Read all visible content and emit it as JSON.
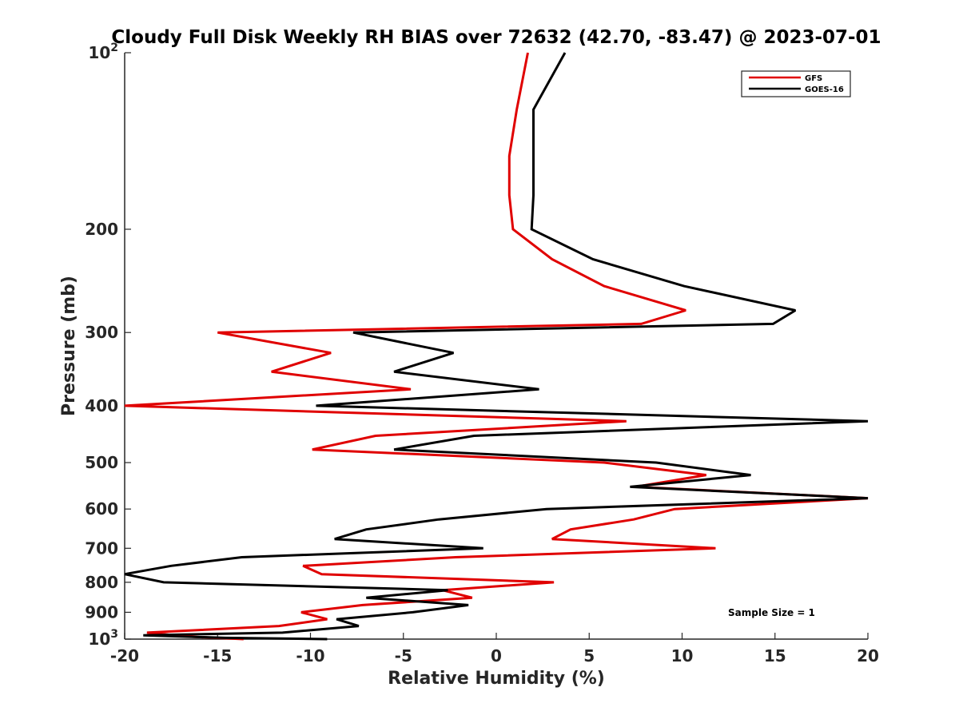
{
  "chart_data": {
    "type": "line",
    "title": "Cloudy Full Disk Weekly RH BIAS over 72632 (42.70, -83.47) @ 2023-07-01",
    "xlabel": "Relative Humidity (%)",
    "ylabel": "Pressure (mb)",
    "xlim": [
      -20,
      20
    ],
    "ylim": [
      100,
      1000
    ],
    "y_scale": "log",
    "y_reversed": true,
    "grid": false,
    "legend_position": "top-right",
    "x_ticks": [
      -20,
      -15,
      -10,
      -5,
      0,
      5,
      10,
      15,
      20
    ],
    "x_tick_labels": [
      "-20",
      "-15",
      "-10",
      "-5",
      "0",
      "5",
      "10",
      "15",
      "20"
    ],
    "y_ticks": [
      {
        "value": 100,
        "base": "10",
        "exp": "2"
      },
      {
        "value": 200,
        "label": "200"
      },
      {
        "value": 300,
        "label": "300"
      },
      {
        "value": 400,
        "label": "400"
      },
      {
        "value": 500,
        "label": "500"
      },
      {
        "value": 600,
        "label": "600"
      },
      {
        "value": 700,
        "label": "700"
      },
      {
        "value": 800,
        "label": "800"
      },
      {
        "value": 900,
        "label": "900"
      },
      {
        "value": 1000,
        "base": "10",
        "exp": "3"
      }
    ],
    "annotation": "Sample Size = 1",
    "series": [
      {
        "name": "GFS",
        "color": "#e00000",
        "points": [
          [
            1.7,
            100
          ],
          [
            1.1,
            125
          ],
          [
            0.7,
            150
          ],
          [
            0.7,
            175
          ],
          [
            0.9,
            200
          ],
          [
            3.0,
            225
          ],
          [
            5.8,
            250
          ],
          [
            10.2,
            275
          ],
          [
            7.8,
            290
          ],
          [
            -15.0,
            300
          ],
          [
            -8.9,
            325
          ],
          [
            -12.1,
            350
          ],
          [
            -4.6,
            375
          ],
          [
            -20.0,
            400
          ],
          [
            7.0,
            425
          ],
          [
            -6.5,
            450
          ],
          [
            -9.9,
            475
          ],
          [
            5.8,
            500
          ],
          [
            11.3,
            525
          ],
          [
            7.5,
            550
          ],
          [
            20.0,
            575
          ],
          [
            9.6,
            600
          ],
          [
            7.4,
            625
          ],
          [
            4.0,
            650
          ],
          [
            3.0,
            675
          ],
          [
            11.8,
            700
          ],
          [
            -2.2,
            725
          ],
          [
            -10.4,
            750
          ],
          [
            -9.4,
            775
          ],
          [
            3.1,
            800
          ],
          [
            -2.9,
            825
          ],
          [
            -1.3,
            850
          ],
          [
            -7.2,
            875
          ],
          [
            -10.5,
            900
          ],
          [
            -9.1,
            925
          ],
          [
            -11.7,
            950
          ],
          [
            -18.8,
            975
          ],
          [
            -16.6,
            990
          ],
          [
            -13.6,
            1000
          ]
        ]
      },
      {
        "name": "GOES-16",
        "color": "#000000",
        "points": [
          [
            3.7,
            100
          ],
          [
            2.0,
            125
          ],
          [
            2.0,
            150
          ],
          [
            2.0,
            175
          ],
          [
            1.9,
            200
          ],
          [
            5.2,
            225
          ],
          [
            10.1,
            250
          ],
          [
            16.1,
            275
          ],
          [
            14.9,
            290
          ],
          [
            -7.7,
            300
          ],
          [
            -2.3,
            325
          ],
          [
            -5.5,
            350
          ],
          [
            2.3,
            375
          ],
          [
            -9.7,
            400
          ],
          [
            20.0,
            425
          ],
          [
            -1.2,
            450
          ],
          [
            -5.5,
            475
          ],
          [
            8.6,
            500
          ],
          [
            13.7,
            525
          ],
          [
            7.2,
            550
          ],
          [
            20.0,
            575
          ],
          [
            2.7,
            600
          ],
          [
            -3.1,
            625
          ],
          [
            -7.0,
            650
          ],
          [
            -8.7,
            675
          ],
          [
            -0.7,
            700
          ],
          [
            -13.7,
            725
          ],
          [
            -17.5,
            750
          ],
          [
            -20.0,
            775
          ],
          [
            -17.9,
            800
          ],
          [
            -2.6,
            825
          ],
          [
            -7.0,
            850
          ],
          [
            -1.5,
            875
          ],
          [
            -4.5,
            900
          ],
          [
            -8.6,
            925
          ],
          [
            -7.4,
            950
          ],
          [
            -11.5,
            975
          ],
          [
            -19.0,
            985
          ],
          [
            -14.6,
            995
          ],
          [
            -9.1,
            1000
          ]
        ]
      }
    ]
  }
}
